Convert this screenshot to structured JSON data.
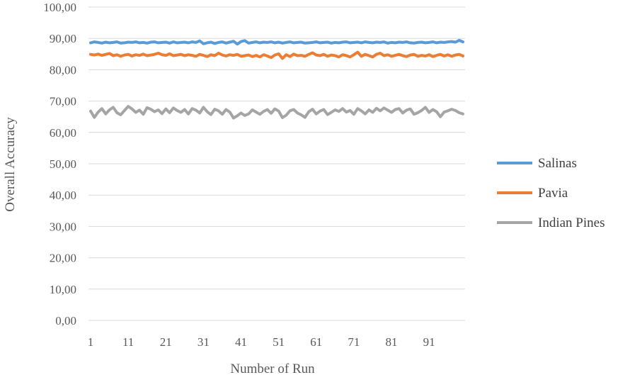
{
  "chart_data": {
    "type": "line",
    "title": "",
    "xlabel": "Number of Run",
    "ylabel": "Overall Accuracy",
    "ylim": [
      0,
      100
    ],
    "y_ticks": [
      "0,00",
      "10,00",
      "20,00",
      "30,00",
      "40,00",
      "50,00",
      "60,00",
      "70,00",
      "80,00",
      "90,00",
      "100,00"
    ],
    "x_tick_labels": [
      "1",
      "11",
      "21",
      "31",
      "41",
      "51",
      "61",
      "71",
      "81",
      "91"
    ],
    "x_range": [
      1,
      100
    ],
    "grid": "horizontal",
    "legend_position": "right",
    "series": [
      {
        "name": "Salinas",
        "color": "#5b9bd5",
        "values": [
          88.6,
          88.9,
          88.7,
          88.5,
          88.8,
          88.6,
          88.7,
          88.9,
          88.5,
          88.6,
          88.8,
          88.7,
          88.9,
          88.6,
          88.7,
          88.5,
          88.8,
          88.9,
          88.6,
          88.7,
          88.8,
          88.5,
          88.9,
          88.6,
          88.7,
          88.8,
          88.6,
          88.9,
          88.7,
          89.2,
          88.3,
          88.6,
          88.8,
          88.4,
          88.7,
          88.9,
          88.5,
          88.8,
          89.1,
          88.2,
          89.0,
          89.3,
          88.5,
          88.7,
          88.9,
          88.6,
          88.8,
          88.7,
          88.9,
          88.6,
          88.8,
          88.5,
          88.7,
          88.9,
          88.6,
          88.7,
          88.8,
          88.5,
          88.6,
          88.7,
          88.9,
          88.6,
          88.7,
          88.8,
          88.5,
          88.7,
          88.6,
          88.8,
          88.9,
          88.6,
          88.7,
          88.8,
          88.6,
          88.9,
          88.7,
          88.6,
          88.8,
          88.7,
          88.9,
          88.5,
          88.7,
          88.6,
          88.8,
          88.7,
          88.9,
          88.6,
          88.5,
          88.7,
          88.8,
          88.6,
          88.7,
          88.9,
          88.6,
          88.8,
          88.7,
          88.9,
          89.0,
          88.8,
          89.4,
          88.9
        ]
      },
      {
        "name": "Pavia",
        "color": "#ed7d31",
        "values": [
          84.9,
          84.7,
          85.0,
          84.6,
          84.9,
          85.2,
          84.5,
          84.8,
          84.3,
          84.7,
          84.9,
          84.4,
          84.8,
          84.6,
          85.0,
          84.5,
          84.7,
          84.9,
          85.3,
          84.8,
          84.6,
          85.1,
          84.5,
          84.7,
          84.9,
          84.5,
          84.8,
          84.6,
          84.3,
          84.9,
          84.6,
          84.2,
          84.8,
          84.5,
          85.3,
          84.7,
          84.4,
          84.8,
          84.6,
          84.9,
          84.3,
          84.5,
          84.7,
          84.2,
          84.6,
          84.1,
          84.8,
          84.4,
          83.9,
          84.7,
          85.1,
          83.6,
          84.8,
          84.2,
          85.0,
          84.5,
          84.6,
          84.3,
          84.9,
          85.4,
          84.7,
          84.5,
          84.9,
          84.3,
          84.7,
          84.5,
          84.1,
          84.8,
          84.5,
          84.1,
          84.8,
          85.6,
          84.3,
          84.9,
          84.5,
          84.1,
          84.9,
          85.3,
          84.5,
          84.8,
          84.3,
          84.6,
          84.9,
          84.5,
          84.2,
          84.7,
          84.9,
          84.3,
          84.6,
          84.4,
          84.8,
          84.2,
          84.6,
          84.9,
          84.4,
          84.8,
          84.3,
          84.7,
          84.9,
          84.4
        ]
      },
      {
        "name": "Indian Pines",
        "color": "#a5a5a5",
        "values": [
          66.8,
          64.8,
          66.5,
          67.6,
          65.9,
          67.2,
          68.0,
          66.3,
          65.6,
          67.0,
          68.3,
          67.5,
          66.4,
          67.1,
          65.8,
          67.9,
          67.4,
          66.6,
          67.2,
          66.0,
          67.5,
          66.3,
          67.8,
          67.0,
          66.4,
          67.3,
          65.9,
          67.6,
          67.1,
          66.2,
          68.0,
          66.6,
          65.7,
          67.4,
          66.9,
          65.8,
          67.3,
          66.5,
          64.6,
          65.3,
          66.2,
          65.4,
          65.9,
          67.2,
          66.5,
          65.8,
          66.7,
          67.3,
          66.1,
          67.5,
          66.8,
          64.7,
          65.5,
          66.9,
          67.3,
          66.2,
          65.6,
          64.8,
          66.6,
          67.4,
          65.9,
          66.8,
          67.3,
          65.7,
          66.4,
          67.2,
          66.7,
          67.6,
          66.5,
          67.0,
          65.8,
          67.6,
          66.9,
          65.9,
          67.2,
          66.4,
          67.7,
          66.9,
          67.8,
          67.1,
          66.4,
          67.3,
          67.6,
          66.2,
          67.1,
          67.5,
          65.8,
          66.3,
          67.0,
          68.0,
          66.4,
          67.3,
          66.6,
          65.0,
          66.5,
          66.9,
          67.4,
          67.0,
          66.3,
          65.9
        ]
      }
    ]
  }
}
